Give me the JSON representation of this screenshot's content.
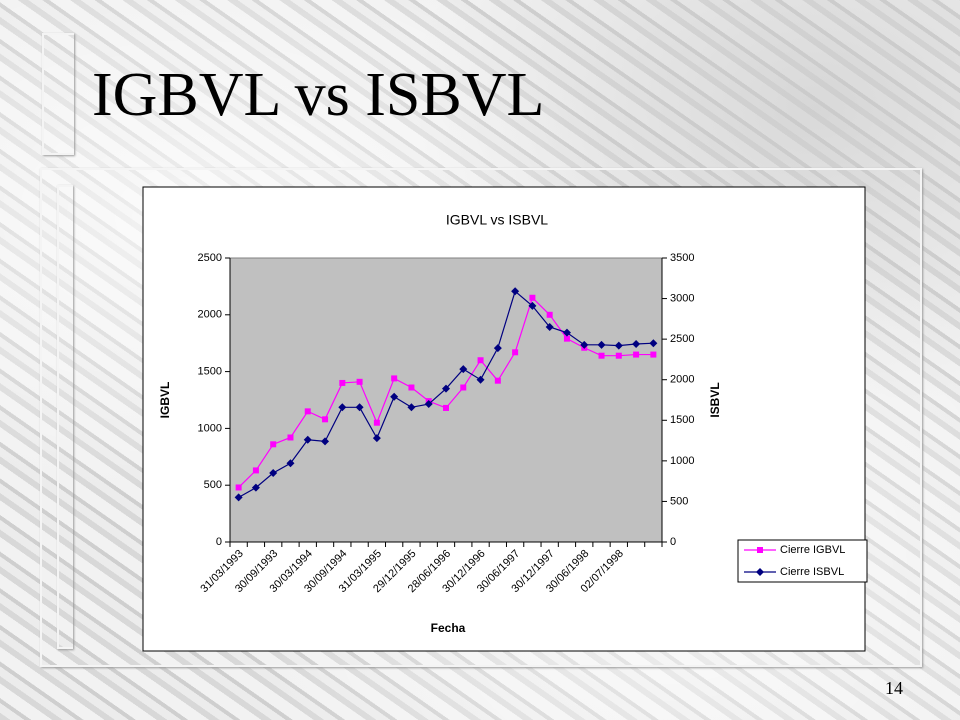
{
  "slide_title": "IGBVL vs ISBVL",
  "page_number": "14",
  "chart_data": {
    "type": "line",
    "title": "IGBVL vs ISBVL",
    "x_label": "Fecha",
    "y_label": "IGBVL",
    "y2_label": "ISBVL",
    "categories": [
      "31/03/1993",
      null,
      "30/09/1993",
      null,
      "30/03/1994",
      null,
      "30/09/1994",
      null,
      "31/03/1995",
      null,
      "29/12/1995",
      null,
      "28/06/1996",
      null,
      "30/12/1996",
      null,
      "30/06/1997",
      null,
      "30/12/1997",
      null,
      "30/06/1998",
      null,
      "02/07/1998",
      null,
      null
    ],
    "series": [
      {
        "name": "Cierre IGBVL",
        "color": "#ff00ff",
        "marker": "square",
        "values": [
          480,
          630,
          860,
          920,
          1150,
          1080,
          1400,
          1410,
          1050,
          1440,
          1360,
          1240,
          1180,
          1360,
          1600,
          1420,
          1670,
          2150,
          2000,
          1790,
          1710,
          1640,
          1640,
          1650,
          1650
        ]
      },
      {
        "name": "Cierre ISBVL",
        "color": "#000080",
        "marker": "diamond",
        "axis": "y2",
        "values": [
          550,
          670,
          850,
          970,
          1260,
          1240,
          1660,
          1660,
          1280,
          1790,
          1660,
          1700,
          1890,
          2130,
          2000,
          2390,
          3090,
          2910,
          2650,
          2580,
          2430,
          2430,
          2420,
          2440,
          2450
        ]
      }
    ],
    "ylim": [
      0,
      2500
    ],
    "yticks": [
      0,
      500,
      1000,
      1500,
      2000,
      2500
    ],
    "y2lim": [
      0,
      3500
    ],
    "y2ticks": [
      0,
      500,
      1000,
      1500,
      2000,
      2500,
      3000,
      3500
    ],
    "plot_background": "#c0c0c0"
  }
}
